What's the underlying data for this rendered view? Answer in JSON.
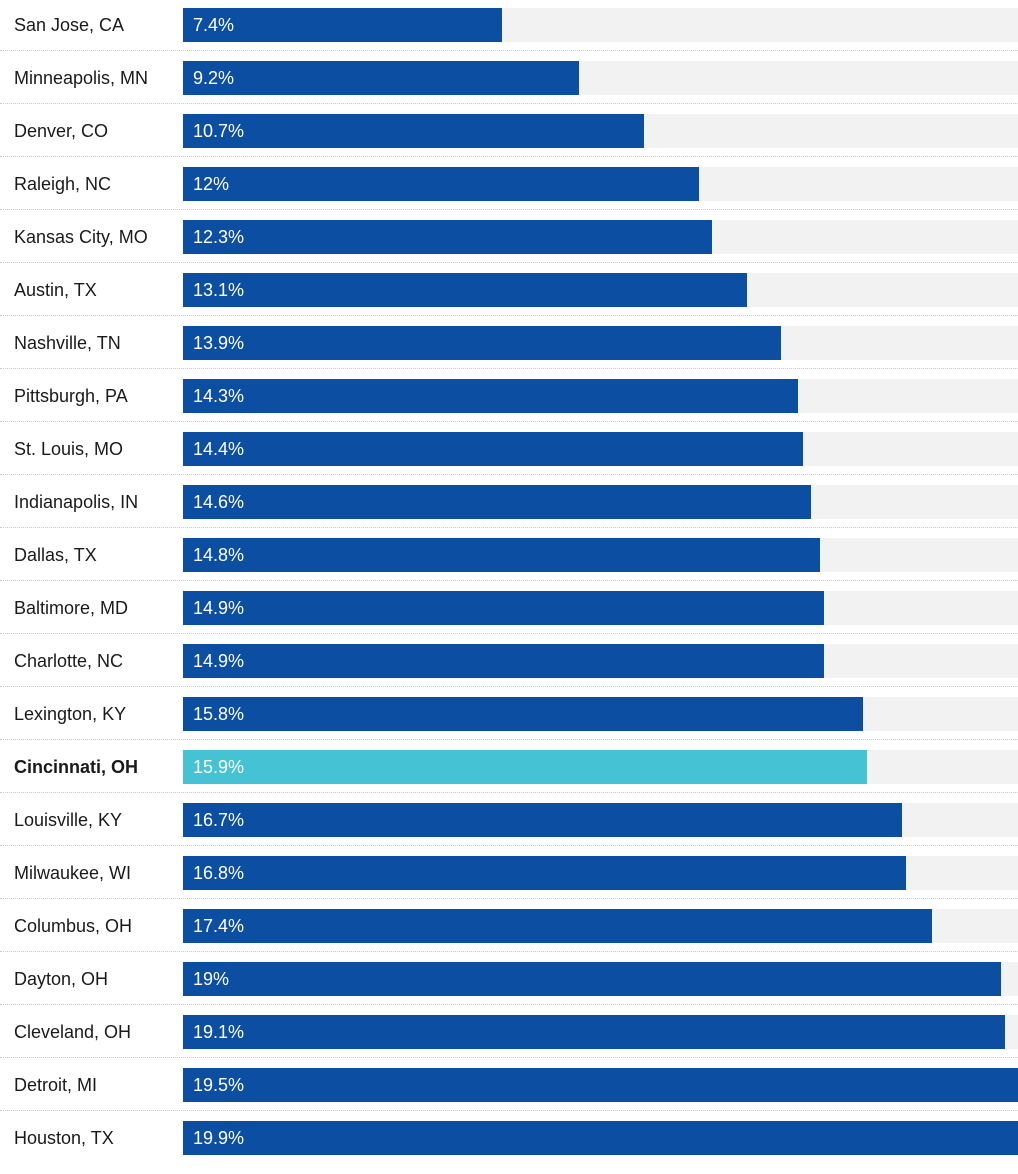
{
  "chart_data": {
    "type": "bar",
    "orientation": "horizontal",
    "categories": [
      "San Jose, CA",
      "Minneapolis, MN",
      "Denver, CO",
      "Raleigh, NC",
      "Kansas City, MO",
      "Austin, TX",
      "Nashville, TN",
      "Pittsburgh, PA",
      "St. Louis, MO",
      "Indianapolis, IN",
      "Dallas, TX",
      "Baltimore, MD",
      "Charlotte, NC",
      "Lexington, KY",
      "Cincinnati, OH",
      "Louisville, KY",
      "Milwaukee, WI",
      "Columbus, OH",
      "Dayton, OH",
      "Cleveland, OH",
      "Detroit, MI",
      "Houston, TX"
    ],
    "values": [
      7.4,
      9.2,
      10.7,
      12,
      12.3,
      13.1,
      13.9,
      14.3,
      14.4,
      14.6,
      14.8,
      14.9,
      14.9,
      15.8,
      15.9,
      16.7,
      16.8,
      17.4,
      19,
      19.1,
      19.5,
      19.9
    ],
    "value_labels": [
      "7.4%",
      "9.2%",
      "10.7%",
      "12%",
      "12.3%",
      "13.1%",
      "13.9%",
      "14.3%",
      "14.4%",
      "14.6%",
      "14.8%",
      "14.9%",
      "14.9%",
      "15.8%",
      "15.9%",
      "16.7%",
      "16.8%",
      "17.4%",
      "19%",
      "19.1%",
      "19.5%",
      "19.9%"
    ],
    "highlight": "Cincinnati, OH",
    "xlim": [
      0,
      19.4
    ],
    "colors": {
      "bar": "#0b4ea2",
      "highlight": "#45c2d4",
      "track": "#f2f2f2"
    },
    "grid": false,
    "legend": "none",
    "title": "",
    "xlabel": "",
    "ylabel": ""
  }
}
